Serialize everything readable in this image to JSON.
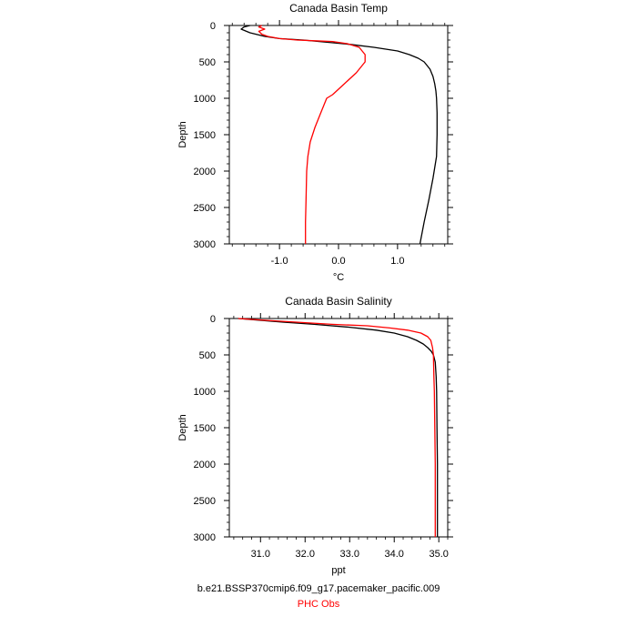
{
  "colors": {
    "model": "#000000",
    "obs": "#ff0000",
    "axis": "#000000",
    "background": "#ffffff"
  },
  "legend": {
    "model_label": "b.e21.BSSP370cmip6.f09_g17.pacemaker_pacific.009",
    "obs_label": "PHC Obs"
  },
  "chart_data": [
    {
      "type": "line",
      "title": "Canada Basin Temp",
      "xlabel": "°C",
      "ylabel": "Depth",
      "xlim": [
        -1.85,
        1.85
      ],
      "ylim": [
        3000,
        0
      ],
      "y_inverted": true,
      "xticks": [
        -1.0,
        0.0,
        1.0
      ],
      "xtick_labels": [
        "-1.0",
        "0.0",
        "1.0"
      ],
      "yticks": [
        0,
        500,
        1000,
        1500,
        2000,
        2500,
        3000
      ],
      "ytick_labels": [
        "0",
        "500",
        "1000",
        "1500",
        "2000",
        "2500",
        "3000"
      ],
      "series": [
        {
          "color": "#000000",
          "x": [
            -1.5,
            -1.6,
            -1.65,
            -1.5,
            -1.25,
            -1.0,
            -0.6,
            -0.2,
            0.2,
            0.6,
            1.0,
            1.2,
            1.35,
            1.45,
            1.55,
            1.6,
            1.63,
            1.65,
            1.66,
            1.67,
            1.67,
            1.66,
            1.6,
            1.53,
            1.45,
            1.38
          ],
          "y": [
            0,
            20,
            50,
            100,
            150,
            180,
            200,
            230,
            260,
            300,
            350,
            400,
            450,
            500,
            600,
            700,
            800,
            900,
            1000,
            1200,
            1500,
            1800,
            2100,
            2400,
            2700,
            3000
          ]
        },
        {
          "color": "#ff0000",
          "x": [
            -1.3,
            -1.35,
            -1.25,
            -1.35,
            -1.3,
            -1.2,
            -1.0,
            -0.7,
            -0.4,
            -0.1,
            0.15,
            0.35,
            0.45,
            0.45,
            0.3,
            0.1,
            -0.1,
            -0.2,
            -0.3,
            -0.4,
            -0.48,
            -0.52,
            -0.54,
            -0.55,
            -0.56,
            -0.56
          ],
          "y": [
            0,
            20,
            50,
            80,
            120,
            150,
            180,
            200,
            210,
            220,
            250,
            300,
            400,
            500,
            650,
            800,
            950,
            1000,
            1200,
            1400,
            1600,
            1800,
            2000,
            2400,
            2700,
            3000
          ]
        }
      ]
    },
    {
      "type": "line",
      "title": "Canada Basin Salinity",
      "xlabel": "ppt",
      "ylabel": "Depth",
      "xlim": [
        30.3,
        35.2
      ],
      "ylim": [
        3000,
        0
      ],
      "y_inverted": true,
      "xticks": [
        31.0,
        32.0,
        33.0,
        34.0,
        35.0
      ],
      "xtick_labels": [
        "31.0",
        "32.0",
        "33.0",
        "34.0",
        "35.0"
      ],
      "yticks": [
        0,
        500,
        1000,
        1500,
        2000,
        2500,
        3000
      ],
      "ytick_labels": [
        "0",
        "500",
        "1000",
        "1500",
        "2000",
        "2500",
        "3000"
      ],
      "series": [
        {
          "color": "#000000",
          "x": [
            30.5,
            30.9,
            31.5,
            32.2,
            33.0,
            33.6,
            34.0,
            34.3,
            34.5,
            34.65,
            34.75,
            34.83,
            34.88,
            34.92,
            34.94,
            34.95,
            34.96,
            34.97,
            34.97
          ],
          "y": [
            0,
            20,
            50,
            80,
            120,
            160,
            200,
            250,
            300,
            350,
            400,
            450,
            500,
            600,
            800,
            1000,
            1500,
            2000,
            3000
          ]
        },
        {
          "color": "#ff0000",
          "x": [
            30.5,
            31.0,
            31.8,
            32.6,
            33.4,
            33.9,
            34.3,
            34.6,
            34.75,
            34.82,
            34.86,
            34.88,
            34.89,
            34.9,
            34.91,
            34.92,
            34.92
          ],
          "y": [
            0,
            20,
            50,
            80,
            100,
            130,
            160,
            200,
            250,
            300,
            400,
            500,
            800,
            1000,
            1500,
            2000,
            3000
          ]
        }
      ]
    }
  ]
}
